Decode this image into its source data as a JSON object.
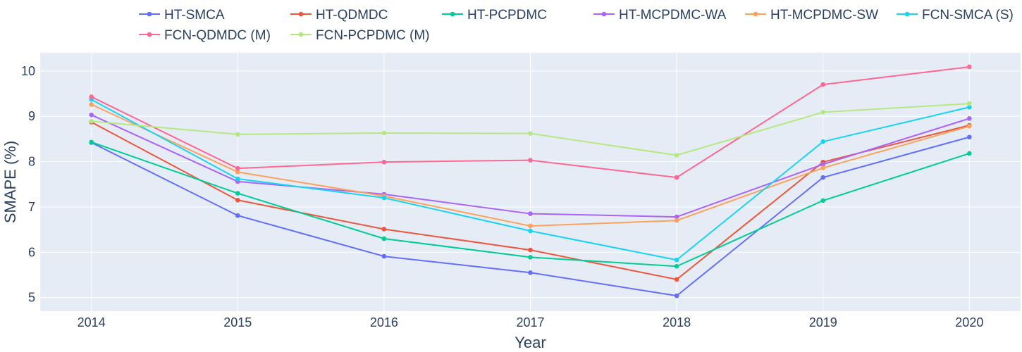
{
  "chart_data": {
    "type": "line",
    "title": "",
    "xlabel": "Year",
    "ylabel": "SMAPE (%)",
    "x": [
      2014,
      2015,
      2016,
      2017,
      2018,
      2019,
      2020
    ],
    "xlim": [
      2013.65,
      2020.35
    ],
    "ylim": [
      4.7,
      10.4
    ],
    "yticks": [
      5,
      6,
      7,
      8,
      9,
      10
    ],
    "grid": true,
    "legend_position": "top",
    "series": [
      {
        "name": "HT-SMCA",
        "color": "#636efa",
        "values": [
          8.42,
          6.81,
          5.91,
          5.55,
          5.04,
          7.65,
          8.54
        ]
      },
      {
        "name": "HT-QDMDC",
        "color": "#ef553b",
        "values": [
          8.87,
          7.15,
          6.51,
          6.05,
          5.4,
          7.99,
          8.8
        ]
      },
      {
        "name": "HT-PCPDMC",
        "color": "#00cc96",
        "values": [
          8.43,
          7.3,
          6.3,
          5.89,
          5.69,
          7.14,
          8.18
        ]
      },
      {
        "name": "HT-MCPDMC-WA",
        "color": "#ab63fa",
        "values": [
          9.03,
          7.56,
          7.28,
          6.85,
          6.78,
          7.94,
          8.95
        ]
      },
      {
        "name": "HT-MCPDMC-SW",
        "color": "#ffa15a",
        "values": [
          9.26,
          7.77,
          7.24,
          6.58,
          6.7,
          7.86,
          8.78
        ]
      },
      {
        "name": "FCN-SMCA (S)",
        "color": "#19d3f3",
        "values": [
          9.37,
          7.62,
          7.2,
          6.47,
          5.83,
          8.44,
          9.2
        ]
      },
      {
        "name": "FCN-QDMDC (M)",
        "color": "#ff6692",
        "values": [
          9.43,
          7.85,
          7.99,
          8.03,
          7.65,
          9.7,
          10.09
        ]
      },
      {
        "name": "FCN-PCPDMC (M)",
        "color": "#b6e880",
        "values": [
          8.89,
          8.6,
          8.63,
          8.62,
          8.14,
          9.09,
          9.28
        ]
      }
    ]
  }
}
